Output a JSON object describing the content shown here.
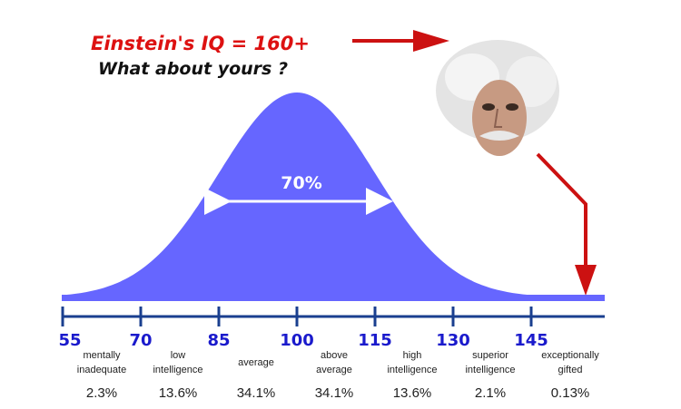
{
  "title": "Einstein's IQ = 160+",
  "subtitle": "What about yours ?",
  "band_label": "70%",
  "colors": {
    "curve": "#6666ff",
    "axis": "#1a3f8f",
    "tick_labels": "#1a1acc",
    "title": "#dd1111",
    "arrow": "#cc1111"
  },
  "icons": {
    "portrait": "einstein-portrait"
  },
  "chart_data": {
    "type": "area",
    "distribution": "normal",
    "mean": 100,
    "sd": 15,
    "xlim": [
      55,
      160
    ],
    "ticks": [
      "55",
      "70",
      "85",
      "100",
      "115",
      "130",
      "145"
    ],
    "tick_values": [
      55,
      70,
      85,
      100,
      115,
      130,
      145
    ],
    "categories": [
      {
        "label_1": "mentally",
        "label_2": "inadequate",
        "percent": "2.3%"
      },
      {
        "label_1": "low",
        "label_2": "intelligence",
        "percent": "13.6%"
      },
      {
        "label_1": "average",
        "label_2": "",
        "percent": "34.1%"
      },
      {
        "label_1": "above",
        "label_2": "average",
        "percent": "34.1%"
      },
      {
        "label_1": "high",
        "label_2": "intelligence",
        "percent": "13.6%"
      },
      {
        "label_1": "superior",
        "label_2": "intelligence",
        "percent": "2.1%"
      },
      {
        "label_1": "exceptionally",
        "label_2": "gifted",
        "percent": "0.13%"
      }
    ],
    "band": {
      "from": 85,
      "to": 115
    },
    "marker": 160
  }
}
